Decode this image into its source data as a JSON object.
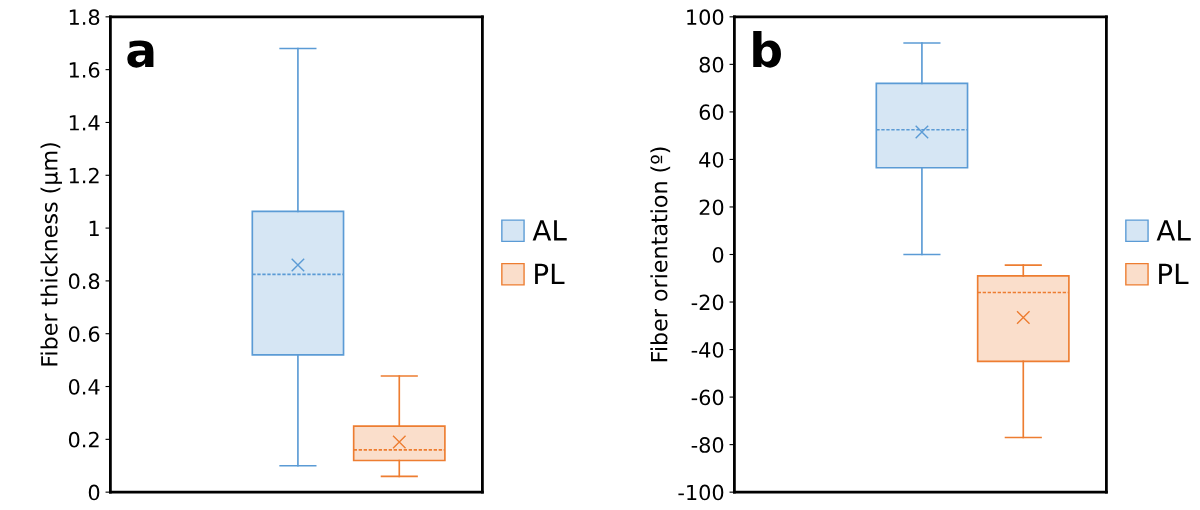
{
  "chart_data": [
    {
      "type": "box",
      "ylabel": "Fiber thickness (µm)",
      "annotations": [
        "a"
      ],
      "categories": [
        null
      ],
      "ylim": [
        0,
        1.8
      ],
      "yticks": [
        0,
        0.2,
        0.4,
        0.6,
        0.8,
        {
          "value": 1,
          "label": "1"
        },
        1.2,
        1.4,
        1.6,
        1.8
      ],
      "grid": false,
      "legend": "right",
      "marker": "cross",
      "series": [
        {
          "name": "AL",
          "color": "#5b9bd5",
          "boxes": [
            {
              "low": 0.1,
              "q1": 0.52,
              "median": 0.825,
              "q3": 1.063,
              "high": 1.68,
              "mean": 0.86
            }
          ]
        },
        {
          "name": "PL",
          "color": "#ed7d31",
          "boxes": [
            {
              "low": 0.06,
              "q1": 0.12,
              "median": 0.16,
              "q3": 0.25,
              "high": 0.44,
              "mean": 0.19
            }
          ]
        }
      ]
    },
    {
      "type": "box",
      "ylabel": "Fiber orientation (º)",
      "annotations": [
        "b"
      ],
      "categories": [
        null
      ],
      "ylim": [
        -100,
        100
      ],
      "yticks": [
        -100,
        -80,
        -60,
        -40,
        -20,
        0,
        20,
        40,
        60,
        80,
        100
      ],
      "grid": false,
      "legend": "right",
      "marker": "cross",
      "series": [
        {
          "name": "AL",
          "color": "#5b9bd5",
          "boxes": [
            {
              "low": 0,
              "q1": 36.5,
              "median": 52.5,
              "q3": 72,
              "high": 89,
              "mean": 51.5
            }
          ]
        },
        {
          "name": "PL",
          "color": "#ed7d31",
          "boxes": [
            {
              "low": -77,
              "q1": -45,
              "median": -16,
              "q3": -9,
              "high": -4.5,
              "mean": -26.5
            }
          ]
        }
      ]
    }
  ]
}
